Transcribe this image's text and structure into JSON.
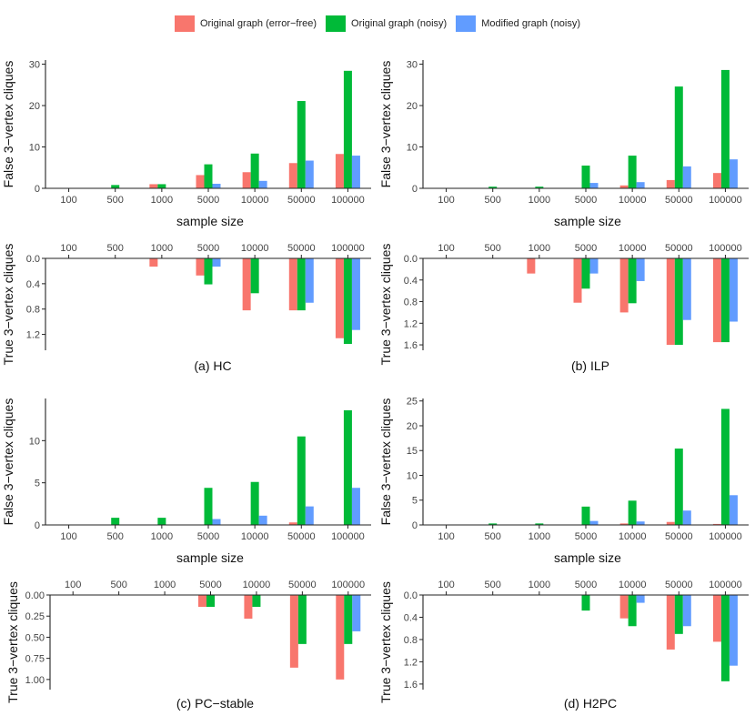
{
  "legend": {
    "items": [
      {
        "label": "Original graph (error−free)",
        "color": "#F8766D"
      },
      {
        "label": "Original graph (noisy)",
        "color": "#00BA38"
      },
      {
        "label": "Modified graph (noisy)",
        "color": "#619CFF"
      }
    ]
  },
  "chart_data": [
    {
      "type": "bar",
      "panel": "top-left",
      "categories": [
        "100",
        "500",
        "1000",
        "5000",
        "10000",
        "50000",
        "100000"
      ],
      "xlabel": "sample size",
      "ylabel": "False 3−vertex cliques",
      "ylim": [
        0,
        31
      ],
      "yticks": [
        0,
        10,
        20,
        30
      ],
      "ytick_labels": [
        "0",
        "10",
        "20",
        "30"
      ],
      "direction": "up",
      "series": [
        {
          "name": "Original graph (error−free)",
          "values": [
            0,
            0,
            1.0,
            3.2,
            3.9,
            6.1,
            8.3
          ]
        },
        {
          "name": "Original graph (noisy)",
          "values": [
            0,
            0.8,
            1.0,
            5.8,
            8.4,
            21.1,
            28.4
          ]
        },
        {
          "name": "Modified graph (noisy)",
          "values": [
            0,
            0,
            0,
            1.1,
            1.8,
            6.7,
            7.9
          ]
        }
      ]
    },
    {
      "type": "bar",
      "panel": "top-right",
      "categories": [
        "100",
        "500",
        "1000",
        "5000",
        "10000",
        "50000",
        "100000"
      ],
      "xlabel": "sample size",
      "ylabel": "False 3−vertex cliques",
      "ylim": [
        0,
        31
      ],
      "yticks": [
        0,
        10,
        20,
        30
      ],
      "ytick_labels": [
        "0",
        "10",
        "20",
        "30"
      ],
      "direction": "up",
      "series": [
        {
          "name": "Original graph (error−free)",
          "values": [
            0,
            0,
            0,
            0,
            0.7,
            2.0,
            3.7
          ]
        },
        {
          "name": "Original graph (noisy)",
          "values": [
            0,
            0.4,
            0.4,
            5.5,
            7.9,
            24.6,
            28.6
          ]
        },
        {
          "name": "Modified graph (noisy)",
          "values": [
            0,
            0,
            0,
            1.3,
            1.5,
            5.3,
            7.0
          ]
        }
      ]
    },
    {
      "type": "bar",
      "panel": "row2-left",
      "categories": [
        "100",
        "500",
        "1000",
        "5000",
        "10000",
        "50000",
        "100000"
      ],
      "xlabel": "",
      "ylabel": "True 3−vertex cliques",
      "caption": "(a) HC",
      "ylim": [
        0,
        1.45
      ],
      "yticks": [
        0.0,
        0.4,
        0.8,
        1.2
      ],
      "ytick_labels": [
        "0.0",
        "0.4",
        "0.8",
        "1.2"
      ],
      "direction": "down",
      "series": [
        {
          "name": "Original graph (error−free)",
          "values": [
            0,
            0,
            0.13,
            0.27,
            0.82,
            0.82,
            1.26
          ]
        },
        {
          "name": "Original graph (noisy)",
          "values": [
            0,
            0,
            0,
            0.41,
            0.55,
            0.82,
            1.35
          ]
        },
        {
          "name": "Modified graph (noisy)",
          "values": [
            0,
            0,
            0,
            0.13,
            0,
            0.7,
            1.13
          ]
        }
      ]
    },
    {
      "type": "bar",
      "panel": "row2-right",
      "categories": [
        "100",
        "500",
        "1000",
        "5000",
        "10000",
        "50000",
        "100000"
      ],
      "xlabel": "",
      "ylabel": "True 3−vertex cliques",
      "caption": "(b) ILP",
      "ylim": [
        0,
        1.7
      ],
      "yticks": [
        0.0,
        0.4,
        0.8,
        1.2,
        1.6
      ],
      "ytick_labels": [
        "0.0",
        "0.4",
        "0.8",
        "1.2",
        "1.6"
      ],
      "direction": "down",
      "series": [
        {
          "name": "Original graph (error−free)",
          "values": [
            0,
            0,
            0.28,
            0.82,
            1.0,
            1.6,
            1.55
          ]
        },
        {
          "name": "Original graph (noisy)",
          "values": [
            0,
            0,
            0,
            0.56,
            0.83,
            1.6,
            1.55
          ]
        },
        {
          "name": "Modified graph (noisy)",
          "values": [
            0,
            0,
            0,
            0.28,
            0.42,
            1.14,
            1.17
          ]
        }
      ]
    },
    {
      "type": "bar",
      "panel": "row3-left",
      "categories": [
        "100",
        "500",
        "1000",
        "5000",
        "10000",
        "50000",
        "100000"
      ],
      "xlabel": "sample size",
      "ylabel": "False 3−vertex cliques",
      "ylim": [
        0,
        15
      ],
      "yticks": [
        0,
        5,
        10
      ],
      "ytick_labels": [
        "0",
        "5",
        "10"
      ],
      "direction": "up",
      "series": [
        {
          "name": "Original graph (error−free)",
          "values": [
            0,
            0,
            0,
            0,
            0,
            0.3,
            0
          ]
        },
        {
          "name": "Original graph (noisy)",
          "values": [
            0,
            0.85,
            0.85,
            4.4,
            5.1,
            10.5,
            13.6
          ]
        },
        {
          "name": "Modified graph (noisy)",
          "values": [
            0,
            0,
            0,
            0.7,
            1.1,
            2.2,
            4.4
          ]
        }
      ]
    },
    {
      "type": "bar",
      "panel": "row3-right",
      "categories": [
        "100",
        "500",
        "1000",
        "5000",
        "10000",
        "50000",
        "100000"
      ],
      "xlabel": "sample size",
      "ylabel": "False 3−vertex cliques",
      "ylim": [
        0,
        25.5
      ],
      "yticks": [
        0,
        5,
        10,
        15,
        20,
        25
      ],
      "ytick_labels": [
        "0",
        "5",
        "10",
        "15",
        "20",
        "25"
      ],
      "direction": "up",
      "series": [
        {
          "name": "Original graph (error−free)",
          "values": [
            0,
            0,
            0,
            0,
            0.3,
            0.6,
            0.2
          ]
        },
        {
          "name": "Original graph (noisy)",
          "values": [
            0,
            0.3,
            0.3,
            3.7,
            4.9,
            15.4,
            23.4
          ]
        },
        {
          "name": "Modified graph (noisy)",
          "values": [
            0,
            0,
            0,
            0.8,
            0.7,
            2.9,
            6.0
          ]
        }
      ]
    },
    {
      "type": "bar",
      "panel": "row4-left",
      "categories": [
        "100",
        "500",
        "1000",
        "5000",
        "10000",
        "50000",
        "100000"
      ],
      "xlabel": "",
      "ylabel": "True 3−vertex cliques",
      "caption": "(c) PC−stable",
      "ylim": [
        0,
        1.12
      ],
      "yticks": [
        0.0,
        0.25,
        0.5,
        0.75,
        1.0
      ],
      "ytick_labels": [
        "0.00",
        "0.25",
        "0.50",
        "0.75",
        "1.00"
      ],
      "direction": "down",
      "series": [
        {
          "name": "Original graph (error−free)",
          "values": [
            0,
            0,
            0,
            0.14,
            0.28,
            0.86,
            1.0
          ]
        },
        {
          "name": "Original graph (noisy)",
          "values": [
            0,
            0,
            0,
            0.14,
            0.14,
            0.58,
            0.58
          ]
        },
        {
          "name": "Modified graph (noisy)",
          "values": [
            0,
            0,
            0,
            0,
            0,
            0,
            0.43
          ]
        }
      ]
    },
    {
      "type": "bar",
      "panel": "row4-right",
      "categories": [
        "100",
        "500",
        "1000",
        "5000",
        "10000",
        "50000",
        "100000"
      ],
      "xlabel": "",
      "ylabel": "True 3−vertex cliques",
      "caption": "(d) H2PC",
      "ylim": [
        0,
        1.7
      ],
      "yticks": [
        0.0,
        0.4,
        0.8,
        1.2,
        1.6
      ],
      "ytick_labels": [
        "0.0",
        "0.4",
        "0.8",
        "1.2",
        "1.6"
      ],
      "direction": "down",
      "series": [
        {
          "name": "Original graph (error−free)",
          "values": [
            0,
            0,
            0,
            0,
            0.42,
            0.98,
            0.84
          ]
        },
        {
          "name": "Original graph (noisy)",
          "values": [
            0,
            0,
            0,
            0.28,
            0.56,
            0.7,
            1.55
          ]
        },
        {
          "name": "Modified graph (noisy)",
          "values": [
            0,
            0,
            0,
            0,
            0.14,
            0.56,
            1.27
          ]
        }
      ]
    }
  ]
}
